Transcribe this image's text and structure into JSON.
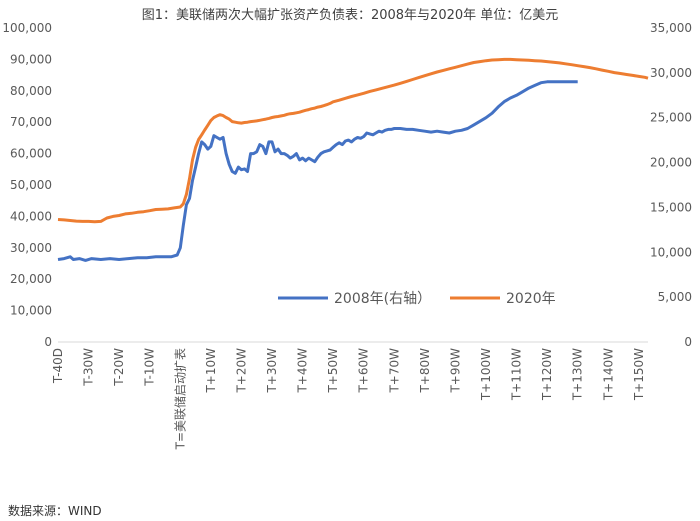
{
  "chart_data": {
    "type": "line",
    "title": "图1：美联储两次大幅扩张资产负债表：2008年与2020年 单位：亿美元",
    "source": "数据来源：WIND",
    "y_left": {
      "min": 0,
      "max": 100000,
      "ticks": [
        "0",
        "10,000",
        "20,000",
        "30,000",
        "40,000",
        "50,000",
        "60,000",
        "70,000",
        "80,000",
        "90,000",
        "100,000"
      ]
    },
    "y_right": {
      "min": 0,
      "max": 35000,
      "ticks": [
        "0",
        "5,000",
        "10,000",
        "15,000",
        "20,000",
        "25,000",
        "30,000",
        "35,000"
      ]
    },
    "x_range": [
      -40,
      153
    ],
    "x_ticks": [
      {
        "x": -40,
        "label": "T-40D"
      },
      {
        "x": -30,
        "label": "T-30W"
      },
      {
        "x": -20,
        "label": "T-20W"
      },
      {
        "x": -10,
        "label": "T-10W"
      },
      {
        "x": 0,
        "label": "T=美联储启动扩表"
      },
      {
        "x": 10,
        "label": "T+10W"
      },
      {
        "x": 20,
        "label": "T+20W"
      },
      {
        "x": 30,
        "label": "T+30W"
      },
      {
        "x": 40,
        "label": "T+40W"
      },
      {
        "x": 50,
        "label": "T+50W"
      },
      {
        "x": 60,
        "label": "T+60W"
      },
      {
        "x": 70,
        "label": "T+70W"
      },
      {
        "x": 80,
        "label": "T+80W"
      },
      {
        "x": 90,
        "label": "T+90W"
      },
      {
        "x": 100,
        "label": "T+100W"
      },
      {
        "x": 110,
        "label": "T+110W"
      },
      {
        "x": 120,
        "label": "T+120W"
      },
      {
        "x": 130,
        "label": "T+130W"
      },
      {
        "x": 140,
        "label": "T+140W"
      },
      {
        "x": 150,
        "label": "T+150W"
      }
    ],
    "grid": false,
    "legend_position": "center-inside",
    "series": [
      {
        "name": "2008年(右轴）",
        "axis": "right",
        "color": "#4472C4",
        "points": [
          [
            -40,
            9200
          ],
          [
            -38,
            9300
          ],
          [
            -36,
            9500
          ],
          [
            -35,
            9200
          ],
          [
            -33,
            9300
          ],
          [
            -31,
            9100
          ],
          [
            -29,
            9300
          ],
          [
            -26,
            9200
          ],
          [
            -23,
            9300
          ],
          [
            -20,
            9200
          ],
          [
            -17,
            9300
          ],
          [
            -14,
            9400
          ],
          [
            -11,
            9400
          ],
          [
            -8,
            9500
          ],
          [
            -5,
            9500
          ],
          [
            -3,
            9500
          ],
          [
            -1,
            9700
          ],
          [
            0,
            10500
          ],
          [
            1,
            13000
          ],
          [
            2,
            15300
          ],
          [
            3,
            16000
          ],
          [
            4,
            18000
          ],
          [
            5,
            19500
          ],
          [
            6,
            21000
          ],
          [
            7,
            22300
          ],
          [
            8,
            22000
          ],
          [
            9,
            21500
          ],
          [
            10,
            21800
          ],
          [
            11,
            23000
          ],
          [
            12,
            22800
          ],
          [
            13,
            22600
          ],
          [
            14,
            22800
          ],
          [
            15,
            21000
          ],
          [
            16,
            19800
          ],
          [
            17,
            19000
          ],
          [
            18,
            18800
          ],
          [
            19,
            19500
          ],
          [
            20,
            19200
          ],
          [
            21,
            19300
          ],
          [
            22,
            19000
          ],
          [
            23,
            21000
          ],
          [
            24,
            21000
          ],
          [
            25,
            21200
          ],
          [
            26,
            22000
          ],
          [
            27,
            21800
          ],
          [
            28,
            21000
          ],
          [
            29,
            22300
          ],
          [
            30,
            22300
          ],
          [
            31,
            21200
          ],
          [
            32,
            21500
          ],
          [
            33,
            21000
          ],
          [
            34,
            21000
          ],
          [
            35,
            20800
          ],
          [
            36,
            20500
          ],
          [
            37,
            20700
          ],
          [
            38,
            21000
          ],
          [
            39,
            20300
          ],
          [
            40,
            20500
          ],
          [
            41,
            20200
          ],
          [
            42,
            20500
          ],
          [
            43,
            20300
          ],
          [
            44,
            20100
          ],
          [
            45,
            20600
          ],
          [
            46,
            21000
          ],
          [
            47,
            21200
          ],
          [
            48,
            21300
          ],
          [
            49,
            21400
          ],
          [
            50,
            21700
          ],
          [
            51,
            22000
          ],
          [
            52,
            22200
          ],
          [
            53,
            22000
          ],
          [
            54,
            22400
          ],
          [
            55,
            22500
          ],
          [
            56,
            22300
          ],
          [
            57,
            22600
          ],
          [
            58,
            22800
          ],
          [
            59,
            22700
          ],
          [
            60,
            22900
          ],
          [
            61,
            23300
          ],
          [
            62,
            23200
          ],
          [
            63,
            23100
          ],
          [
            64,
            23300
          ],
          [
            65,
            23500
          ],
          [
            66,
            23400
          ],
          [
            67,
            23600
          ],
          [
            68,
            23700
          ],
          [
            69,
            23700
          ],
          [
            70,
            23800
          ],
          [
            72,
            23800
          ],
          [
            74,
            23700
          ],
          [
            76,
            23700
          ],
          [
            78,
            23600
          ],
          [
            80,
            23500
          ],
          [
            82,
            23400
          ],
          [
            84,
            23500
          ],
          [
            86,
            23400
          ],
          [
            88,
            23300
          ],
          [
            90,
            23500
          ],
          [
            92,
            23600
          ],
          [
            94,
            23800
          ],
          [
            96,
            24200
          ],
          [
            98,
            24600
          ],
          [
            100,
            25000
          ],
          [
            102,
            25500
          ],
          [
            104,
            26200
          ],
          [
            106,
            26800
          ],
          [
            108,
            27200
          ],
          [
            110,
            27500
          ],
          [
            112,
            27900
          ],
          [
            114,
            28300
          ],
          [
            116,
            28600
          ],
          [
            118,
            28900
          ],
          [
            120,
            29000
          ],
          [
            122,
            29000
          ],
          [
            124,
            29000
          ],
          [
            126,
            29000
          ],
          [
            128,
            29000
          ],
          [
            130,
            29000
          ]
        ]
      },
      {
        "name": "2020年",
        "axis": "left",
        "color": "#ED7D31",
        "points": [
          [
            -40,
            39000
          ],
          [
            -38,
            38900
          ],
          [
            -36,
            38700
          ],
          [
            -34,
            38500
          ],
          [
            -32,
            38400
          ],
          [
            -30,
            38400
          ],
          [
            -28,
            38300
          ],
          [
            -26,
            38400
          ],
          [
            -24,
            39500
          ],
          [
            -22,
            40000
          ],
          [
            -20,
            40300
          ],
          [
            -18,
            40800
          ],
          [
            -16,
            41000
          ],
          [
            -14,
            41300
          ],
          [
            -12,
            41500
          ],
          [
            -10,
            41800
          ],
          [
            -8,
            42200
          ],
          [
            -6,
            42300
          ],
          [
            -4,
            42400
          ],
          [
            -2,
            42700
          ],
          [
            0,
            43000
          ],
          [
            1,
            44000
          ],
          [
            2,
            47000
          ],
          [
            3,
            52000
          ],
          [
            4,
            58000
          ],
          [
            5,
            62000
          ],
          [
            6,
            64500
          ],
          [
            7,
            66000
          ],
          [
            8,
            67500
          ],
          [
            9,
            69000
          ],
          [
            10,
            70500
          ],
          [
            11,
            71500
          ],
          [
            12,
            72000
          ],
          [
            13,
            72400
          ],
          [
            14,
            72100
          ],
          [
            15,
            71500
          ],
          [
            16,
            71000
          ],
          [
            17,
            70200
          ],
          [
            18,
            70000
          ],
          [
            19,
            69800
          ],
          [
            20,
            69700
          ],
          [
            21,
            69900
          ],
          [
            22,
            70000
          ],
          [
            23,
            70200
          ],
          [
            24,
            70300
          ],
          [
            25,
            70400
          ],
          [
            26,
            70600
          ],
          [
            27,
            70800
          ],
          [
            28,
            71000
          ],
          [
            29,
            71200
          ],
          [
            30,
            71500
          ],
          [
            31,
            71700
          ],
          [
            32,
            71800
          ],
          [
            33,
            72000
          ],
          [
            34,
            72200
          ],
          [
            35,
            72500
          ],
          [
            36,
            72700
          ],
          [
            37,
            72800
          ],
          [
            38,
            73000
          ],
          [
            39,
            73200
          ],
          [
            40,
            73500
          ],
          [
            41,
            73800
          ],
          [
            42,
            74000
          ],
          [
            43,
            74300
          ],
          [
            44,
            74500
          ],
          [
            45,
            74800
          ],
          [
            46,
            75000
          ],
          [
            47,
            75300
          ],
          [
            48,
            75600
          ],
          [
            49,
            76000
          ],
          [
            50,
            76500
          ],
          [
            52,
            77000
          ],
          [
            54,
            77600
          ],
          [
            56,
            78200
          ],
          [
            58,
            78700
          ],
          [
            60,
            79200
          ],
          [
            62,
            79800
          ],
          [
            64,
            80300
          ],
          [
            66,
            80800
          ],
          [
            68,
            81300
          ],
          [
            70,
            81800
          ],
          [
            72,
            82400
          ],
          [
            74,
            83000
          ],
          [
            76,
            83600
          ],
          [
            78,
            84200
          ],
          [
            80,
            84800
          ],
          [
            82,
            85400
          ],
          [
            84,
            86000
          ],
          [
            86,
            86500
          ],
          [
            88,
            87000
          ],
          [
            90,
            87500
          ],
          [
            92,
            88000
          ],
          [
            94,
            88500
          ],
          [
            96,
            89000
          ],
          [
            98,
            89300
          ],
          [
            100,
            89600
          ],
          [
            102,
            89800
          ],
          [
            104,
            89900
          ],
          [
            106,
            90000
          ],
          [
            108,
            90000
          ],
          [
            110,
            89900
          ],
          [
            112,
            89800
          ],
          [
            114,
            89700
          ],
          [
            116,
            89600
          ],
          [
            118,
            89500
          ],
          [
            120,
            89300
          ],
          [
            122,
            89100
          ],
          [
            124,
            88900
          ],
          [
            126,
            88600
          ],
          [
            128,
            88300
          ],
          [
            130,
            88000
          ],
          [
            132,
            87700
          ],
          [
            134,
            87400
          ],
          [
            136,
            87000
          ],
          [
            138,
            86600
          ],
          [
            140,
            86200
          ],
          [
            142,
            85800
          ],
          [
            144,
            85500
          ],
          [
            146,
            85200
          ],
          [
            148,
            84900
          ],
          [
            150,
            84600
          ],
          [
            152,
            84300
          ],
          [
            153,
            84000
          ]
        ]
      }
    ]
  }
}
